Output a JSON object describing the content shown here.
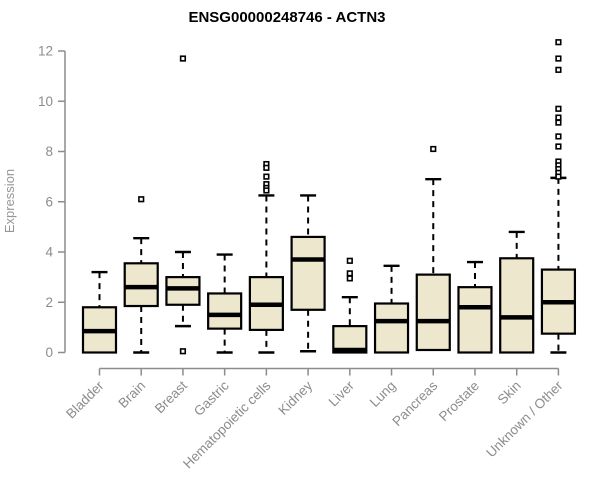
{
  "chart_data": {
    "type": "boxplot",
    "title": "ENSG00000248746 - ACTN3",
    "ylabel": "Expression",
    "xlabel": "",
    "ylim": [
      0,
      12
    ],
    "yticks": [
      0,
      2,
      4,
      6,
      8,
      10,
      12
    ],
    "grid": false,
    "legend": "none",
    "categories": [
      "Bladder",
      "Brain",
      "Breast",
      "Gastric",
      "Hematopoietic cells",
      "Kidney",
      "Liver",
      "Lung",
      "Pancreas",
      "Prostate",
      "Skin",
      "Unknown / Other"
    ],
    "series": [
      {
        "category": "Bladder",
        "whisker_low": null,
        "q1": 0.0,
        "median": 0.85,
        "q3": 1.8,
        "whisker_high": 3.2,
        "outliers": []
      },
      {
        "category": "Brain",
        "whisker_low": 0.0,
        "q1": 1.85,
        "median": 2.6,
        "q3": 3.55,
        "whisker_high": 4.55,
        "outliers": [
          6.1
        ]
      },
      {
        "category": "Breast",
        "whisker_low": 1.05,
        "q1": 1.9,
        "median": 2.55,
        "q3": 3.0,
        "whisker_high": 4.0,
        "outliers": [
          11.7,
          0.05
        ]
      },
      {
        "category": "Gastric",
        "whisker_low": 0.0,
        "q1": 0.95,
        "median": 1.5,
        "q3": 2.35,
        "whisker_high": 3.9,
        "outliers": []
      },
      {
        "category": "Hematopoietic cells",
        "whisker_low": 0.0,
        "q1": 0.9,
        "median": 1.9,
        "q3": 3.0,
        "whisker_high": 6.25,
        "outliers": [
          7.5,
          7.35,
          7.0,
          6.7,
          6.55,
          6.45
        ]
      },
      {
        "category": "Kidney",
        "whisker_low": 0.05,
        "q1": 1.7,
        "median": 3.7,
        "q3": 4.6,
        "whisker_high": 6.25,
        "outliers": []
      },
      {
        "category": "Liver",
        "whisker_low": null,
        "q1": 0.0,
        "median": 0.1,
        "q3": 1.05,
        "whisker_high": 2.2,
        "outliers": [
          3.65,
          3.15,
          2.95
        ]
      },
      {
        "category": "Lung",
        "whisker_low": null,
        "q1": 0.0,
        "median": 1.25,
        "q3": 1.95,
        "whisker_high": 3.45,
        "outliers": []
      },
      {
        "category": "Pancreas",
        "whisker_low": null,
        "q1": 0.1,
        "median": 1.25,
        "q3": 3.1,
        "whisker_high": 6.9,
        "outliers": [
          8.1
        ]
      },
      {
        "category": "Prostate",
        "whisker_low": null,
        "q1": 0.0,
        "median": 1.8,
        "q3": 2.6,
        "whisker_high": 3.6,
        "outliers": []
      },
      {
        "category": "Skin",
        "whisker_low": null,
        "q1": 0.0,
        "median": 1.4,
        "q3": 3.75,
        "whisker_high": 4.8,
        "outliers": []
      },
      {
        "category": "Unknown / Other",
        "whisker_low": 0.0,
        "q1": 0.75,
        "median": 2.0,
        "q3": 3.3,
        "whisker_high": 6.95,
        "outliers": [
          12.35,
          11.7,
          11.25,
          9.7,
          9.35,
          9.15,
          8.6,
          8.2,
          7.6,
          7.45,
          7.3,
          7.15,
          7.0
        ]
      }
    ],
    "colors": {
      "box_fill": "#EDE7CD",
      "box_stroke": "#000000",
      "median": "#000000",
      "whisker": "#000000",
      "outlier_stroke": "#000000",
      "outlier_fill": "#FFFFFF",
      "axis": "#8C8C8C",
      "tick_label": "#8C8C8C",
      "axis_title": "#969696",
      "title": "#000000",
      "background": "#FFFFFF"
    }
  }
}
